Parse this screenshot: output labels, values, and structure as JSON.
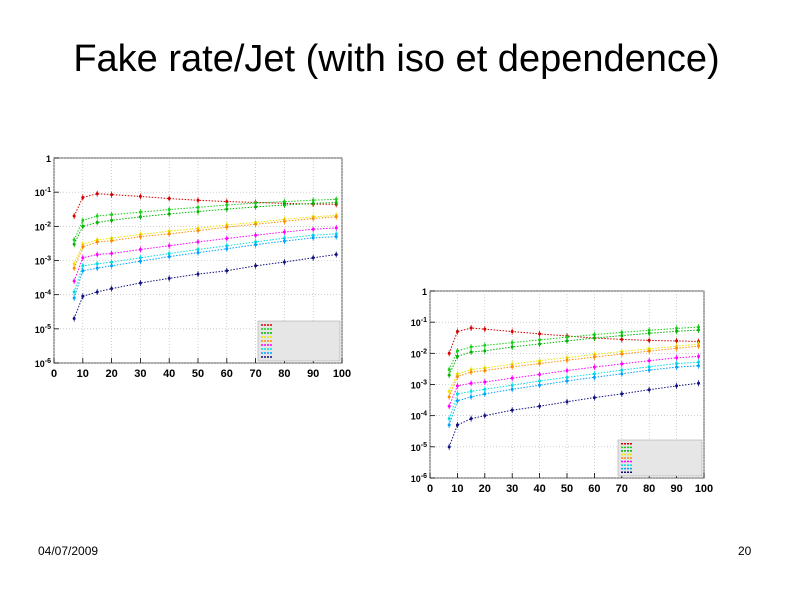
{
  "slide": {
    "title": "Fake rate/Jet (with iso et dependence)",
    "date": "04/07/2009",
    "page_number": "20"
  },
  "colors": {
    "series": [
      "#d40000",
      "#18d018",
      "#00b400",
      "#e8e800",
      "#ff8c00",
      "#ff00ff",
      "#00e0e0",
      "#00a0ff",
      "#101080"
    ],
    "frame": "#555555",
    "grid": "#b0b0b0",
    "legend_bg": "#e6e6e6"
  },
  "chart_data": [
    {
      "type": "scatter",
      "y_scale": "log",
      "xlim": [
        0,
        100
      ],
      "ylim": [
        1e-06,
        1
      ],
      "x_ticks": [
        "0",
        "10",
        "20",
        "30",
        "40",
        "50",
        "60",
        "70",
        "80",
        "90",
        "100"
      ],
      "y_ticks": [
        {
          "base": "10",
          "exp": "-6"
        },
        {
          "base": "10",
          "exp": "-5"
        },
        {
          "base": "10",
          "exp": "-4"
        },
        {
          "base": "10",
          "exp": "-3"
        },
        {
          "base": "10",
          "exp": "-2"
        },
        {
          "base": "10",
          "exp": "-1"
        },
        {
          "base": "1",
          "exp": ""
        }
      ],
      "grid": true,
      "legend_placement": "bottom-right",
      "series": [
        {
          "x": [
            7,
            10,
            15,
            20,
            30,
            40,
            50,
            60,
            70,
            80,
            90,
            98
          ],
          "y": [
            0.02,
            0.07,
            0.09,
            0.085,
            0.075,
            0.065,
            0.058,
            0.053,
            0.05,
            0.047,
            0.045,
            0.044
          ]
        },
        {
          "x": [
            7,
            10,
            15,
            20,
            30,
            40,
            50,
            60,
            70,
            80,
            90,
            98
          ],
          "y": [
            0.004,
            0.015,
            0.02,
            0.022,
            0.026,
            0.031,
            0.036,
            0.042,
            0.048,
            0.053,
            0.058,
            0.062
          ]
        },
        {
          "x": [
            7,
            10,
            15,
            20,
            30,
            40,
            50,
            60,
            70,
            80,
            90,
            98
          ],
          "y": [
            0.003,
            0.01,
            0.013,
            0.015,
            0.019,
            0.023,
            0.027,
            0.032,
            0.037,
            0.042,
            0.047,
            0.05
          ]
        },
        {
          "x": [
            7,
            10,
            15,
            20,
            30,
            40,
            50,
            60,
            70,
            80,
            90,
            98
          ],
          "y": [
            0.0008,
            0.003,
            0.004,
            0.0045,
            0.0058,
            0.0072,
            0.0088,
            0.011,
            0.013,
            0.016,
            0.019,
            0.021
          ]
        },
        {
          "x": [
            7,
            10,
            15,
            20,
            30,
            40,
            50,
            60,
            70,
            80,
            90,
            98
          ],
          "y": [
            0.0006,
            0.0025,
            0.0035,
            0.0038,
            0.005,
            0.006,
            0.0075,
            0.0095,
            0.0115,
            0.014,
            0.017,
            0.019
          ]
        },
        {
          "x": [
            7,
            10,
            15,
            20,
            30,
            40,
            50,
            60,
            70,
            80,
            90,
            98
          ],
          "y": [
            0.00025,
            0.0012,
            0.0015,
            0.0016,
            0.0021,
            0.0027,
            0.0035,
            0.0044,
            0.0055,
            0.0068,
            0.0082,
            0.009
          ]
        },
        {
          "x": [
            7,
            10,
            15,
            20,
            30,
            40,
            50,
            60,
            70,
            80,
            90,
            98
          ],
          "y": [
            0.00012,
            0.0007,
            0.0008,
            0.0009,
            0.0012,
            0.0016,
            0.0021,
            0.0027,
            0.0035,
            0.0045,
            0.0055,
            0.006
          ]
        },
        {
          "x": [
            7,
            10,
            15,
            20,
            30,
            40,
            50,
            60,
            70,
            80,
            90,
            98
          ],
          "y": [
            8e-05,
            0.0005,
            0.0006,
            0.0007,
            0.00095,
            0.0013,
            0.0017,
            0.0022,
            0.0029,
            0.0037,
            0.0046,
            0.005
          ]
        },
        {
          "x": [
            7,
            10,
            15,
            20,
            30,
            40,
            50,
            60,
            70,
            80,
            90,
            98
          ],
          "y": [
            2e-05,
            9e-05,
            0.00012,
            0.00015,
            0.00022,
            0.0003,
            0.0004,
            0.0005,
            0.0007,
            0.0009,
            0.0012,
            0.0015
          ]
        }
      ]
    },
    {
      "type": "scatter",
      "y_scale": "log",
      "xlim": [
        0,
        100
      ],
      "ylim": [
        1e-06,
        1
      ],
      "x_ticks": [
        "0",
        "10",
        "20",
        "30",
        "40",
        "50",
        "60",
        "70",
        "80",
        "90",
        "100"
      ],
      "y_ticks": [
        {
          "base": "10",
          "exp": "-6"
        },
        {
          "base": "10",
          "exp": "-5"
        },
        {
          "base": "10",
          "exp": "-4"
        },
        {
          "base": "10",
          "exp": "-3"
        },
        {
          "base": "10",
          "exp": "-2"
        },
        {
          "base": "10",
          "exp": "-1"
        },
        {
          "base": "1",
          "exp": ""
        }
      ],
      "grid": true,
      "legend_placement": "bottom-right",
      "series": [
        {
          "x": [
            7,
            10,
            15,
            20,
            30,
            40,
            50,
            60,
            70,
            80,
            90,
            98
          ],
          "y": [
            0.01,
            0.05,
            0.065,
            0.06,
            0.05,
            0.042,
            0.036,
            0.031,
            0.028,
            0.026,
            0.025,
            0.024
          ]
        },
        {
          "x": [
            7,
            10,
            15,
            20,
            30,
            40,
            50,
            60,
            70,
            80,
            90,
            98
          ],
          "y": [
            0.003,
            0.012,
            0.016,
            0.018,
            0.022,
            0.027,
            0.033,
            0.04,
            0.047,
            0.055,
            0.063,
            0.07
          ]
        },
        {
          "x": [
            7,
            10,
            15,
            20,
            30,
            40,
            50,
            60,
            70,
            80,
            90,
            98
          ],
          "y": [
            0.002,
            0.008,
            0.011,
            0.012,
            0.016,
            0.02,
            0.025,
            0.031,
            0.037,
            0.044,
            0.051,
            0.056
          ]
        },
        {
          "x": [
            7,
            10,
            15,
            20,
            30,
            40,
            50,
            60,
            70,
            80,
            90,
            98
          ],
          "y": [
            0.0006,
            0.0022,
            0.003,
            0.0034,
            0.0045,
            0.0058,
            0.0073,
            0.0092,
            0.0115,
            0.014,
            0.017,
            0.02
          ]
        },
        {
          "x": [
            7,
            10,
            15,
            20,
            30,
            40,
            50,
            60,
            70,
            80,
            90,
            98
          ],
          "y": [
            0.0004,
            0.0018,
            0.0025,
            0.0028,
            0.0037,
            0.0047,
            0.006,
            0.0076,
            0.0095,
            0.0118,
            0.0145,
            0.017
          ]
        },
        {
          "x": [
            7,
            10,
            15,
            20,
            30,
            40,
            50,
            60,
            70,
            80,
            90,
            98
          ],
          "y": [
            0.0002,
            0.0009,
            0.0011,
            0.0012,
            0.0016,
            0.0021,
            0.0028,
            0.0036,
            0.0046,
            0.0058,
            0.0072,
            0.008
          ]
        },
        {
          "x": [
            7,
            10,
            15,
            20,
            30,
            40,
            50,
            60,
            70,
            80,
            90,
            98
          ],
          "y": [
            8e-05,
            0.0005,
            0.0006,
            0.0007,
            0.00095,
            0.0013,
            0.0017,
            0.0022,
            0.0029,
            0.0037,
            0.0047,
            0.0052
          ]
        },
        {
          "x": [
            7,
            10,
            15,
            20,
            30,
            40,
            50,
            60,
            70,
            80,
            90,
            98
          ],
          "y": [
            5e-05,
            0.0003,
            0.0004,
            0.0005,
            0.0007,
            0.00095,
            0.0013,
            0.0017,
            0.0022,
            0.0029,
            0.0036,
            0.004
          ]
        },
        {
          "x": [
            7,
            10,
            15,
            20,
            30,
            40,
            50,
            60,
            70,
            80,
            90,
            98
          ],
          "y": [
            1e-05,
            5e-05,
            8e-05,
            0.0001,
            0.00015,
            0.0002,
            0.00028,
            0.00038,
            0.0005,
            0.00068,
            0.0009,
            0.0011
          ]
        }
      ]
    }
  ]
}
